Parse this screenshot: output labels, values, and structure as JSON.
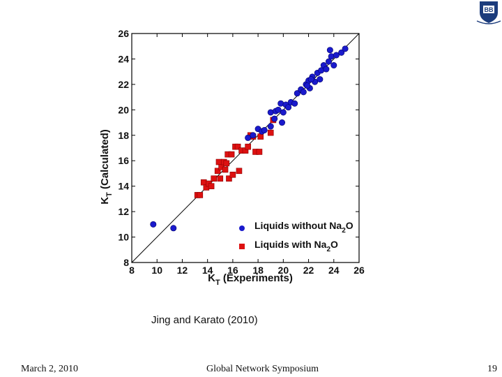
{
  "caption": "Jing and Karato (2010)",
  "footer": {
    "date": "March 2, 2010",
    "event": "Global Network Symposium",
    "page_number": "19"
  },
  "logo": {
    "text": "BB"
  },
  "colors": {
    "series_blue": "#1a1acc",
    "series_red": "#dd1111",
    "crest_blue": "#1c3c7c"
  },
  "chart_data": {
    "type": "scatter",
    "xlabel": "K",
    "xlabel_sub": "T",
    "xlabel_rest": " (Experiments)",
    "ylabel": "K",
    "ylabel_sub": "T",
    "ylabel_rest": " (Calculated)",
    "xlim": [
      8,
      26
    ],
    "ylim": [
      8,
      26
    ],
    "xticks": [
      "8",
      "10",
      "12",
      "14",
      "16",
      "18",
      "20",
      "22",
      "24",
      "26"
    ],
    "yticks": [
      "8",
      "10",
      "12",
      "14",
      "16",
      "18",
      "20",
      "22",
      "24",
      "26"
    ],
    "reference_line": [
      [
        8,
        8
      ],
      [
        26,
        26
      ]
    ],
    "legend_position": "bottom-right",
    "series": [
      {
        "name": "Liquids without Na2O",
        "label_main": "Liquids without Na",
        "label_sub": "2",
        "label_end": "O",
        "marker": "circle",
        "color": "#1a1acc",
        "points": [
          [
            9.7,
            11.0
          ],
          [
            11.3,
            10.7
          ],
          [
            17.2,
            17.8
          ],
          [
            17.6,
            18.0
          ],
          [
            18.0,
            18.5
          ],
          [
            18.3,
            18.3
          ],
          [
            18.5,
            18.4
          ],
          [
            19.0,
            19.8
          ],
          [
            19.0,
            18.7
          ],
          [
            19.3,
            19.3
          ],
          [
            19.4,
            19.9
          ],
          [
            19.6,
            20.0
          ],
          [
            19.8,
            20.5
          ],
          [
            19.9,
            19.0
          ],
          [
            20.0,
            19.8
          ],
          [
            20.2,
            20.4
          ],
          [
            20.4,
            20.2
          ],
          [
            20.6,
            20.6
          ],
          [
            20.9,
            20.5
          ],
          [
            21.1,
            21.3
          ],
          [
            21.4,
            21.6
          ],
          [
            21.6,
            21.4
          ],
          [
            21.8,
            22.0
          ],
          [
            22.0,
            22.3
          ],
          [
            22.1,
            21.7
          ],
          [
            22.3,
            22.6
          ],
          [
            22.5,
            22.2
          ],
          [
            22.7,
            22.9
          ],
          [
            22.9,
            22.4
          ],
          [
            23.0,
            23.1
          ],
          [
            23.2,
            23.5
          ],
          [
            23.4,
            23.2
          ],
          [
            23.6,
            23.8
          ],
          [
            23.8,
            24.2
          ],
          [
            24.0,
            23.5
          ],
          [
            23.7,
            24.7
          ],
          [
            24.2,
            24.3
          ],
          [
            24.6,
            24.5
          ],
          [
            24.9,
            24.8
          ],
          [
            22.2,
            22.4
          ],
          [
            21.9,
            21.9
          ]
        ]
      },
      {
        "name": "Liquids with Na2O",
        "label_main": "Liquids with Na",
        "label_sub": "2",
        "label_end": "O",
        "marker": "square",
        "color": "#dd1111",
        "points": [
          [
            13.2,
            13.3
          ],
          [
            13.4,
            13.3
          ],
          [
            13.7,
            14.3
          ],
          [
            13.9,
            13.9
          ],
          [
            14.1,
            14.2
          ],
          [
            14.3,
            14.0
          ],
          [
            14.5,
            14.6
          ],
          [
            14.8,
            15.2
          ],
          [
            14.9,
            15.9
          ],
          [
            15.0,
            14.6
          ],
          [
            15.1,
            15.5
          ],
          [
            15.3,
            15.9
          ],
          [
            15.4,
            15.3
          ],
          [
            15.5,
            15.8
          ],
          [
            15.6,
            16.5
          ],
          [
            15.7,
            14.6
          ],
          [
            15.9,
            16.5
          ],
          [
            16.0,
            14.9
          ],
          [
            16.2,
            17.1
          ],
          [
            16.4,
            17.1
          ],
          [
            16.5,
            15.2
          ],
          [
            16.7,
            16.8
          ],
          [
            17.0,
            16.8
          ],
          [
            17.2,
            17.1
          ],
          [
            17.4,
            18.0
          ],
          [
            17.6,
            17.9
          ],
          [
            17.8,
            16.7
          ],
          [
            18.1,
            16.7
          ],
          [
            18.2,
            17.9
          ],
          [
            19.0,
            18.2
          ],
          [
            19.2,
            19.2
          ]
        ]
      }
    ]
  }
}
